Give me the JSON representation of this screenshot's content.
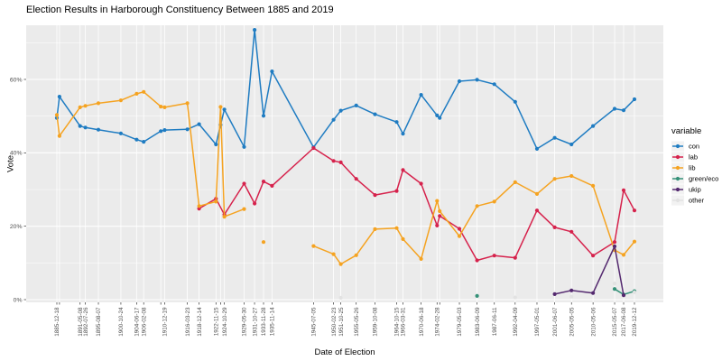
{
  "chart_data": {
    "type": "line",
    "title": "Election Results in Harborough Constituency Between 1885 and 2019",
    "xlabel": "Date of Election",
    "ylabel": "Vote",
    "legend_title": "variable",
    "legend_position": "right",
    "grid": true,
    "panel_bg": "#EBEBEB",
    "grid_color": "#FFFFFF",
    "axis_text_color": "#4D4D4D",
    "y_ticks": [
      {
        "value": 0,
        "label": "0%"
      },
      {
        "value": 20,
        "label": "20%"
      },
      {
        "value": 40,
        "label": "40%"
      },
      {
        "value": 60,
        "label": "60%"
      }
    ],
    "y_minor": [
      10,
      30,
      50,
      70
    ],
    "ylim": [
      -0.7,
      74.8
    ],
    "x_tick_dates": [
      {
        "date": "1885-12-18",
        "label": "1885-12-18"
      },
      {
        "date": "1886-07-26",
        "label": ""
      },
      {
        "date": "1891-05-08",
        "label": "1891-05-08"
      },
      {
        "date": "1892-07-26",
        "label": "1892-07-26"
      },
      {
        "date": "1895-08-07",
        "label": "1895-08-07"
      },
      {
        "date": "1900-10-24",
        "label": "1900-10-24"
      },
      {
        "date": "1904-06-17",
        "label": "1904-06-17"
      },
      {
        "date": "1906-02-08",
        "label": "1906-02-08"
      },
      {
        "date": "1910-01-28",
        "label": ""
      },
      {
        "date": "1910-12-19",
        "label": "1910-12-19"
      },
      {
        "date": "1916-03-23",
        "label": "1916-03-23"
      },
      {
        "date": "1918-12-14",
        "label": "1918-12-14"
      },
      {
        "date": "1922-11-15",
        "label": "1922-11-15"
      },
      {
        "date": "1923-12-06",
        "label": ""
      },
      {
        "date": "1924-10-29",
        "label": "1924-10-29"
      },
      {
        "date": "1929-05-30",
        "label": "1929-05-30"
      },
      {
        "date": "1931-10-27",
        "label": "1931-10-27"
      },
      {
        "date": "1933-11-28",
        "label": "1933-11-28"
      },
      {
        "date": "1935-11-14",
        "label": "1935-11-14"
      },
      {
        "date": "1945-07-05",
        "label": "1945-07-05"
      },
      {
        "date": "1950-02-23",
        "label": "1950-02-23"
      },
      {
        "date": "1951-10-25",
        "label": "1951-10-25"
      },
      {
        "date": "1955-05-26",
        "label": "1955-05-26"
      },
      {
        "date": "1959-10-08",
        "label": "1959-10-08"
      },
      {
        "date": "1964-10-15",
        "label": "1964-10-15"
      },
      {
        "date": "1966-03-31",
        "label": "1966-03-31"
      },
      {
        "date": "1970-06-18",
        "label": "1970-06-18"
      },
      {
        "date": "1974-02-28",
        "label": "1974-02-28"
      },
      {
        "date": "1974-10-10",
        "label": ""
      },
      {
        "date": "1979-05-03",
        "label": "1979-05-03"
      },
      {
        "date": "1983-06-09",
        "label": "1983-06-09"
      },
      {
        "date": "1987-06-11",
        "label": "1987-06-11"
      },
      {
        "date": "1992-04-09",
        "label": "1992-04-09"
      },
      {
        "date": "1997-05-01",
        "label": "1997-05-01"
      },
      {
        "date": "2001-06-07",
        "label": "2001-06-07"
      },
      {
        "date": "2005-05-05",
        "label": "2005-05-05"
      },
      {
        "date": "2010-05-06",
        "label": "2010-05-06"
      },
      {
        "date": "2015-05-07",
        "label": "2015-05-07"
      },
      {
        "date": "2017-06-08",
        "label": "2017-06-08"
      },
      {
        "date": "2019-12-12",
        "label": "2019-12-12"
      }
    ],
    "series": [
      {
        "name": "con",
        "color": "#1F7CC2",
        "points": [
          [
            "1885-12-18",
            49.5
          ],
          [
            "1886-07-26",
            55.3
          ],
          [
            "1891-05-08",
            47.3
          ],
          [
            "1892-07-26",
            46.9
          ],
          [
            "1895-08-07",
            46.3
          ],
          [
            "1900-10-24",
            45.3
          ],
          [
            "1904-06-17",
            43.6
          ],
          [
            "1906-02-08",
            43.0
          ],
          [
            "1910-01-28",
            45.9
          ],
          [
            "1910-12-19",
            46.2
          ],
          [
            "1916-03-23",
            46.4
          ],
          [
            "1918-12-14",
            47.8
          ],
          [
            "1922-11-15",
            42.3
          ],
          [
            "1923-12-06",
            47.6
          ],
          [
            "1924-10-29",
            51.8
          ],
          [
            "1929-05-30",
            41.6
          ],
          [
            "1931-10-27",
            73.5
          ],
          [
            "1933-11-28",
            50.1
          ],
          [
            "1935-11-14",
            62.2
          ],
          [
            "1945-07-05",
            41.5
          ],
          [
            "1950-02-23",
            49.0
          ],
          [
            "1951-10-25",
            51.5
          ],
          [
            "1955-05-26",
            52.9
          ],
          [
            "1959-10-08",
            50.5
          ],
          [
            "1964-10-15",
            48.4
          ],
          [
            "1966-03-31",
            45.2
          ],
          [
            "1970-06-18",
            55.8
          ],
          [
            "1974-02-28",
            50.2
          ],
          [
            "1974-10-10",
            49.5
          ],
          [
            "1979-05-03",
            59.5
          ],
          [
            "1983-06-09",
            59.9
          ],
          [
            "1987-06-11",
            58.7
          ],
          [
            "1992-04-09",
            53.9
          ],
          [
            "1997-05-01",
            41.1
          ],
          [
            "2001-06-07",
            44.1
          ],
          [
            "2005-05-05",
            42.3
          ],
          [
            "2010-05-06",
            47.3
          ],
          [
            "2015-05-07",
            52.0
          ],
          [
            "2017-06-08",
            51.6
          ],
          [
            "2019-12-12",
            54.6
          ]
        ]
      },
      {
        "name": "lab",
        "color": "#D6224C",
        "points": [
          [
            "1918-12-14",
            24.8
          ],
          [
            "1922-11-15",
            27.5
          ],
          [
            "1924-10-29",
            23.2
          ],
          [
            "1929-05-30",
            31.6
          ],
          [
            "1931-10-27",
            26.2
          ],
          [
            "1933-11-28",
            32.2
          ],
          [
            "1935-11-14",
            31.0
          ],
          [
            "1945-07-05",
            41.3
          ],
          [
            "1950-02-23",
            37.8
          ],
          [
            "1951-10-25",
            37.4
          ],
          [
            "1955-05-26",
            32.9
          ],
          [
            "1959-10-08",
            28.5
          ],
          [
            "1964-10-15",
            29.6
          ],
          [
            "1966-03-31",
            35.3
          ],
          [
            "1970-06-18",
            31.6
          ],
          [
            "1974-02-28",
            20.2
          ],
          [
            "1974-10-10",
            22.8
          ],
          [
            "1979-05-03",
            19.3
          ],
          [
            "1983-06-09",
            10.7
          ],
          [
            "1987-06-11",
            12.0
          ],
          [
            "1992-04-09",
            11.4
          ],
          [
            "1997-05-01",
            24.3
          ],
          [
            "2001-06-07",
            19.7
          ],
          [
            "2005-05-05",
            18.5
          ],
          [
            "2010-05-06",
            12.0
          ],
          [
            "2015-05-07",
            15.7
          ],
          [
            "2017-06-08",
            29.8
          ],
          [
            "2019-12-12",
            24.3
          ]
        ]
      },
      {
        "name": "lib",
        "color": "#F5A321",
        "points": [
          [
            "1885-12-18",
            50.3
          ],
          [
            "1886-07-26",
            44.6
          ],
          [
            "1891-05-08",
            52.4
          ],
          [
            "1892-07-26",
            52.8
          ],
          [
            "1895-08-07",
            53.5
          ],
          [
            "1900-10-24",
            54.3
          ],
          [
            "1904-06-17",
            56.1
          ],
          [
            "1906-02-08",
            56.6
          ],
          [
            "1910-01-28",
            52.6
          ],
          [
            "1910-12-19",
            52.4
          ],
          [
            "1916-03-23",
            53.5
          ],
          [
            "1918-12-14",
            25.5
          ],
          [
            "1922-11-15",
            26.7
          ],
          [
            "1923-12-06",
            52.5
          ],
          [
            "1924-10-29",
            22.6
          ],
          [
            "1929-05-30",
            24.7
          ],
          [
            "1931-10-27",
            null
          ],
          [
            "1933-11-28",
            15.7
          ],
          [
            "1935-11-14",
            null
          ],
          [
            "1945-07-05",
            14.6
          ],
          [
            "1950-02-23",
            12.4
          ],
          [
            "1951-10-25",
            9.7
          ],
          [
            "1955-05-26",
            12.1
          ],
          [
            "1959-10-08",
            19.2
          ],
          [
            "1964-10-15",
            19.5
          ],
          [
            "1966-03-31",
            16.5
          ],
          [
            "1970-06-18",
            11.1
          ],
          [
            "1974-02-28",
            26.9
          ],
          [
            "1974-10-10",
            24.1
          ],
          [
            "1979-05-03",
            17.3
          ],
          [
            "1983-06-09",
            25.5
          ],
          [
            "1987-06-11",
            26.7
          ],
          [
            "1992-04-09",
            32.0
          ],
          [
            "1997-05-01",
            28.8
          ],
          [
            "2001-06-07",
            32.9
          ],
          [
            "2005-05-05",
            33.7
          ],
          [
            "2010-05-06",
            31.0
          ],
          [
            "2015-05-07",
            13.5
          ],
          [
            "2017-06-08",
            12.2
          ],
          [
            "2019-12-12",
            15.8
          ]
        ]
      },
      {
        "name": "green/eco",
        "color": "#359178",
        "points": [
          [
            "1983-06-09",
            1.0
          ],
          [
            "1987-06-11",
            null
          ],
          [
            "2015-05-07",
            2.9
          ],
          [
            "2017-06-08",
            1.4
          ],
          [
            "2019-12-12",
            2.3
          ]
        ]
      },
      {
        "name": "ukip",
        "color": "#54296F",
        "points": [
          [
            "2001-06-07",
            1.5
          ],
          [
            "2005-05-05",
            2.5
          ],
          [
            "2010-05-06",
            1.8
          ],
          [
            "2015-05-07",
            14.5
          ],
          [
            "2017-06-08",
            1.2
          ]
        ]
      },
      {
        "name": "other",
        "color": "#E2E2E2",
        "points": [
          [
            "1951-10-25",
            0.5
          ],
          [
            "1955-05-26",
            null
          ],
          [
            "1992-04-09",
            0.6
          ],
          [
            "1997-05-01",
            null
          ],
          [
            "2005-05-05",
            0.8
          ],
          [
            "2010-05-06",
            null
          ],
          [
            "2015-05-07",
            4.4
          ],
          [
            "2017-06-08",
            null
          ],
          [
            "2019-12-12",
            2.0
          ]
        ]
      }
    ]
  }
}
